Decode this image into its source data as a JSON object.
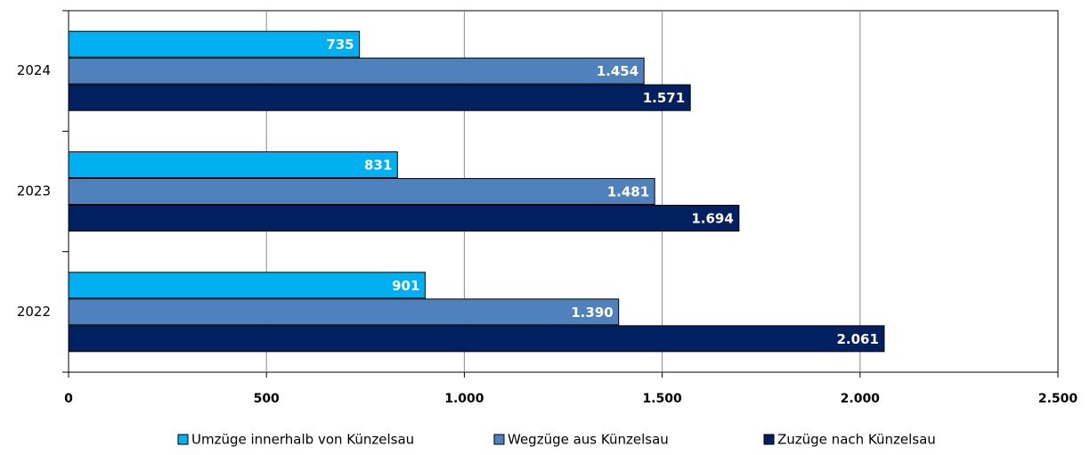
{
  "chart_data": {
    "type": "hbar",
    "categories": [
      "2024",
      "2023",
      "2022"
    ],
    "series": [
      {
        "name": "Umzüge innerhalb von Künzelsau",
        "color": "#00b0f0",
        "values": [
          735,
          831,
          901
        ],
        "value_labels": [
          "735",
          "831",
          "901"
        ]
      },
      {
        "name": "Wegzüge aus Künzelsau",
        "color": "#4f81bd",
        "values": [
          1454,
          1481,
          1390
        ],
        "value_labels": [
          "1.454",
          "1.481",
          "1.390"
        ]
      },
      {
        "name": "Zuzüge nach Künzelsau",
        "color": "#002060",
        "values": [
          1571,
          1694,
          2061
        ],
        "value_labels": [
          "1.571",
          "1.694",
          "2.061"
        ]
      }
    ],
    "xlim": [
      0,
      2500
    ],
    "xticks": [
      0,
      500,
      {
        "value": 1000,
        "label": "1.000"
      },
      {
        "value": 1500,
        "label": "1.500"
      },
      {
        "value": 2000,
        "label": "2.000"
      },
      {
        "value": 2500,
        "label": "2.500"
      }
    ],
    "grid": true,
    "legend": "bottom"
  }
}
